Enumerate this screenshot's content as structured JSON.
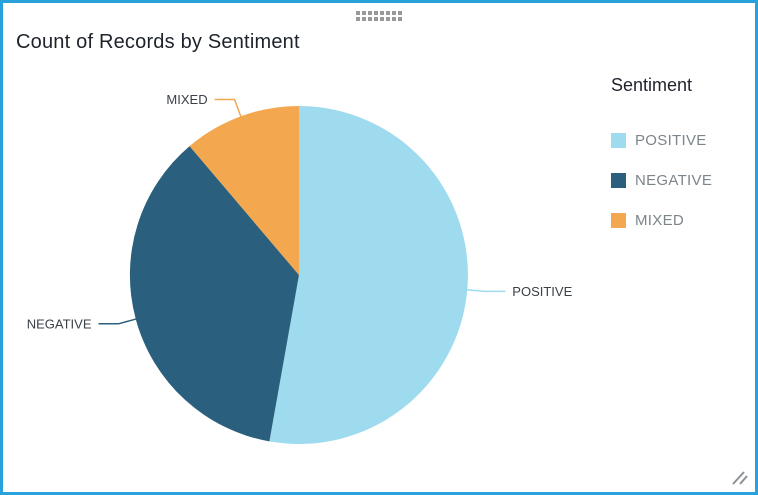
{
  "widget": {
    "title": "Count of Records by Sentiment",
    "colors": {
      "border": "#29A2DB",
      "background": "#FFFFFF",
      "title_text": "#1E232B",
      "legend_label": "#7B858B",
      "slice_label": "#3B4148",
      "handle": "#999999",
      "grip": "#8B9196"
    }
  },
  "legend": {
    "title": "Sentiment",
    "items": [
      {
        "label": "POSITIVE",
        "color": "#9FDBEE"
      },
      {
        "label": "NEGATIVE",
        "color": "#2B5F7E"
      },
      {
        "label": "MIXED",
        "color": "#F3A74F"
      }
    ]
  },
  "chart_data": {
    "type": "pie",
    "title": "Count of Records by Sentiment",
    "legend_title": "Sentiment",
    "legend_position": "right",
    "categories": [
      "POSITIVE",
      "NEGATIVE",
      "MIXED"
    ],
    "values_pct": [
      52.8,
      36.0,
      11.2
    ],
    "colors": [
      "#9FDBEE",
      "#2B5F7E",
      "#F3A74F"
    ],
    "start_angle_deg": 0,
    "direction": "clockwise",
    "donut": false,
    "slice_labels_visible": true,
    "data_values_visible": false
  }
}
